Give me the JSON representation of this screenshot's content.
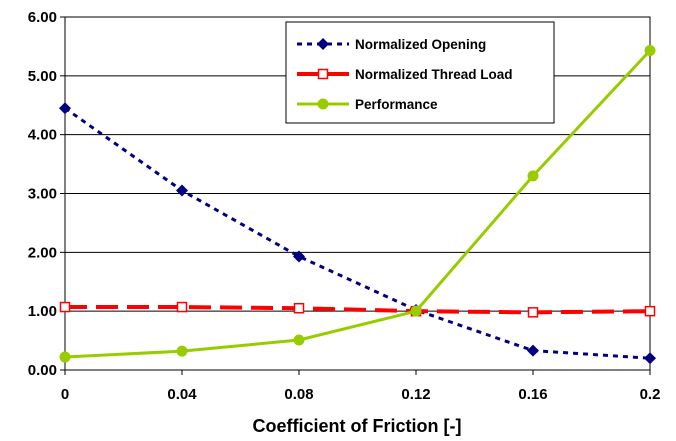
{
  "chart_data": {
    "type": "line",
    "title": "",
    "xlabel": "Coefficient of Friction [-]",
    "ylabel": "",
    "x": [
      0,
      0.04,
      0.08,
      0.12,
      0.16,
      0.2
    ],
    "x_tick_labels": [
      "0",
      "0.04",
      "0.08",
      "0.12",
      "0.16",
      "0.2"
    ],
    "y_tick_labels": [
      "0.00",
      "1.00",
      "2.00",
      "3.00",
      "4.00",
      "5.00",
      "6.00"
    ],
    "ylim": [
      0,
      6
    ],
    "grid": "horizontal",
    "legend_position": "top-right",
    "series": [
      {
        "name": "Normalized Opening",
        "values": [
          4.45,
          3.05,
          1.93,
          1.02,
          0.33,
          0.2
        ],
        "color": "#000080",
        "line_style": "dotted",
        "marker": "diamond"
      },
      {
        "name": "Normalized Thread Load",
        "values": [
          1.07,
          1.07,
          1.05,
          1.0,
          0.98,
          1.0
        ],
        "color": "#ff0000",
        "line_style": "dashed",
        "marker": "open-square"
      },
      {
        "name": "Performance",
        "values": [
          0.22,
          0.32,
          0.51,
          1.0,
          3.3,
          5.43
        ],
        "color": "#99cc00",
        "line_style": "solid",
        "marker": "circle"
      }
    ]
  }
}
